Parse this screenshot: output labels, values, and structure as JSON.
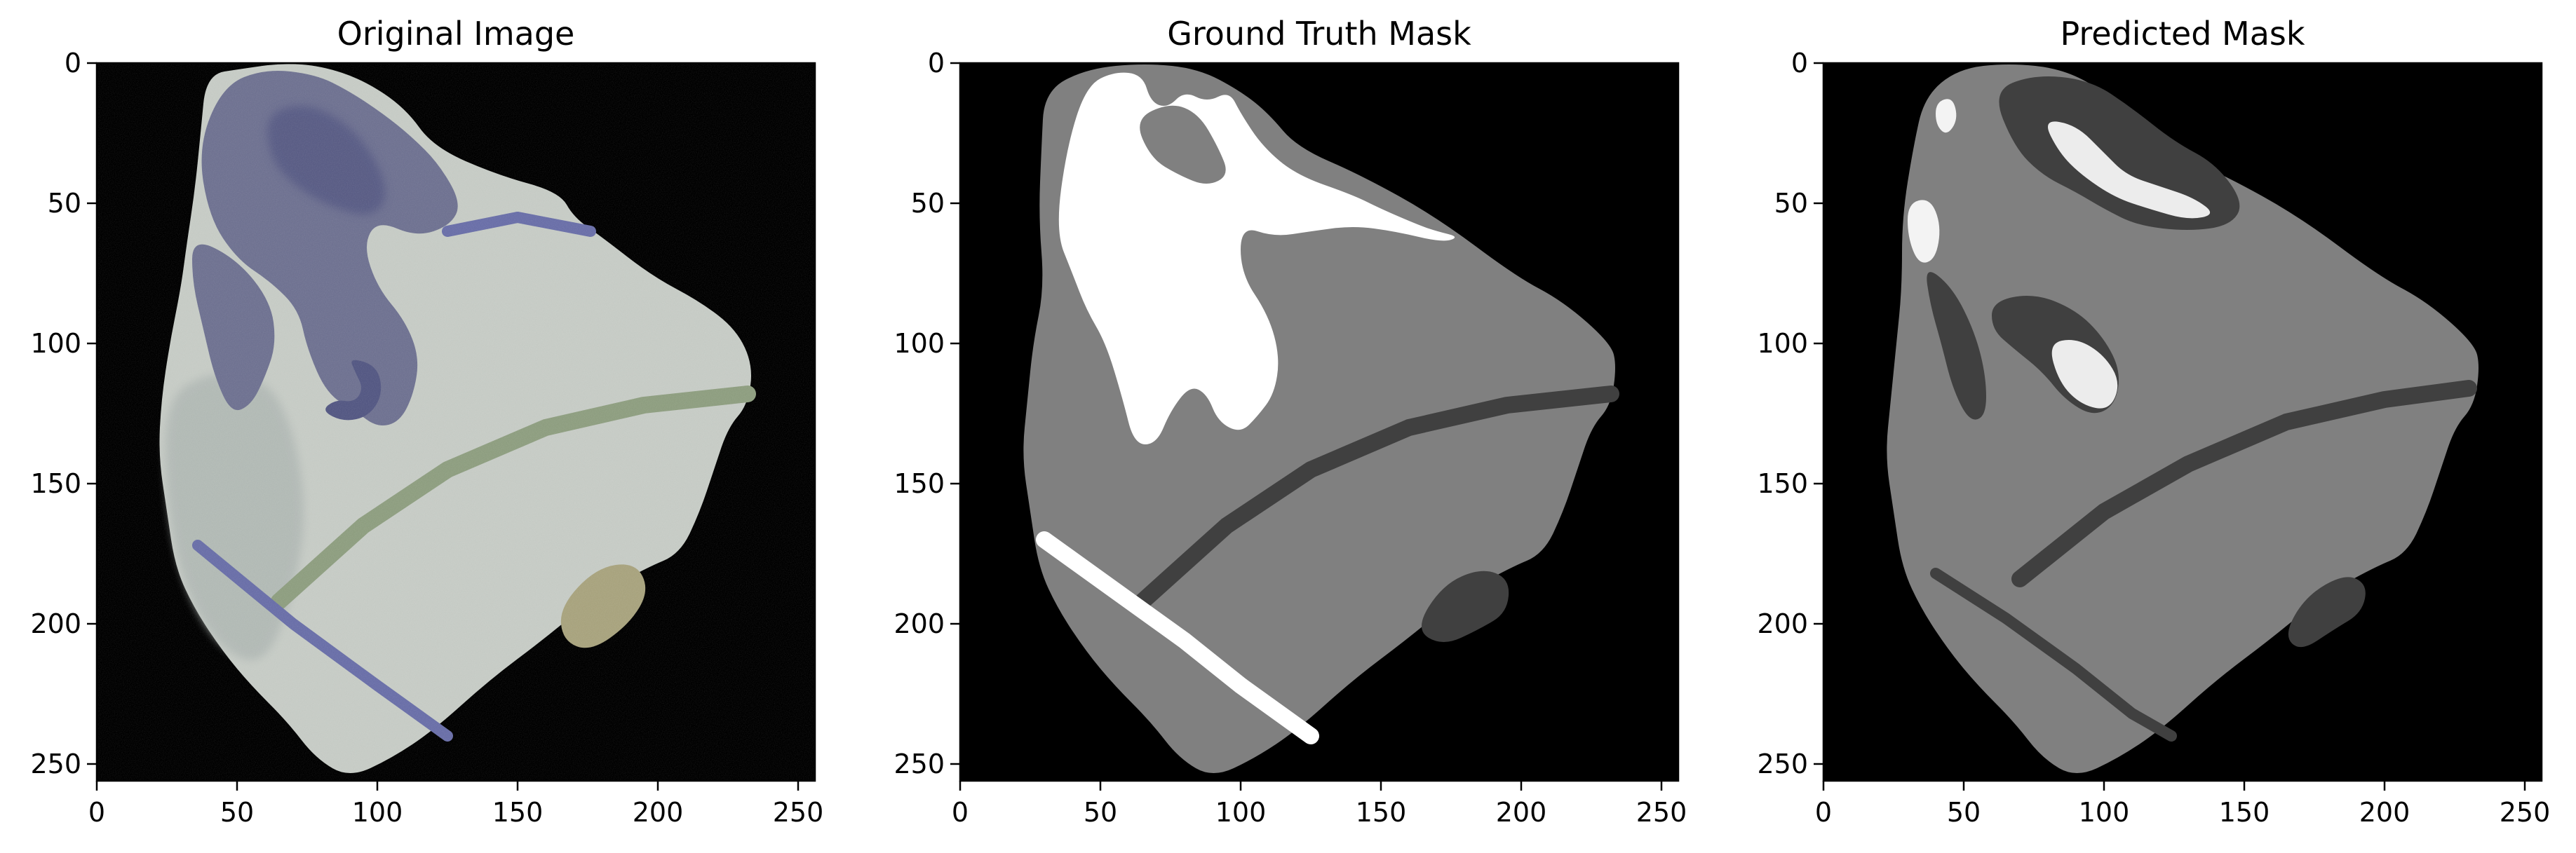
{
  "chart_data": [
    {
      "type": "image",
      "title": "Original Image",
      "xlim": [
        0,
        256
      ],
      "ylim": [
        256,
        0
      ],
      "xticks": [
        0,
        50,
        100,
        150,
        200,
        250
      ],
      "yticks": [
        0,
        50,
        100,
        150,
        200,
        250
      ],
      "grid": false,
      "colors": {
        "background": "#000000",
        "tissue": "#c6cbc5",
        "tissue_shadow": "#aeb6b2",
        "stained_region": "#6f7291",
        "stained_region_dark": "#545883",
        "stem": "#8e9e80",
        "line": "#6a6fa8",
        "spot": "#a8a37e"
      }
    },
    {
      "type": "image",
      "title": "Ground Truth Mask",
      "xlim": [
        0,
        256
      ],
      "ylim": [
        256,
        0
      ],
      "xticks": [
        0,
        50,
        100,
        150,
        200,
        250
      ],
      "yticks": [
        0,
        50,
        100,
        150,
        200,
        250
      ],
      "grid": false,
      "colors": {
        "background": "#000000",
        "tissue": "#808080",
        "dark_class": "#404040",
        "bright_class": "#ffffff"
      }
    },
    {
      "type": "image",
      "title": "Predicted Mask",
      "xlim": [
        0,
        256
      ],
      "ylim": [
        256,
        0
      ],
      "xticks": [
        0,
        50,
        100,
        150,
        200,
        250
      ],
      "yticks": [
        0,
        50,
        100,
        150,
        200,
        250
      ],
      "grid": false,
      "colors": {
        "background": "#000000",
        "tissue": "#808080",
        "dark_class": "#404040",
        "bright_class": "#ffffff"
      }
    }
  ]
}
